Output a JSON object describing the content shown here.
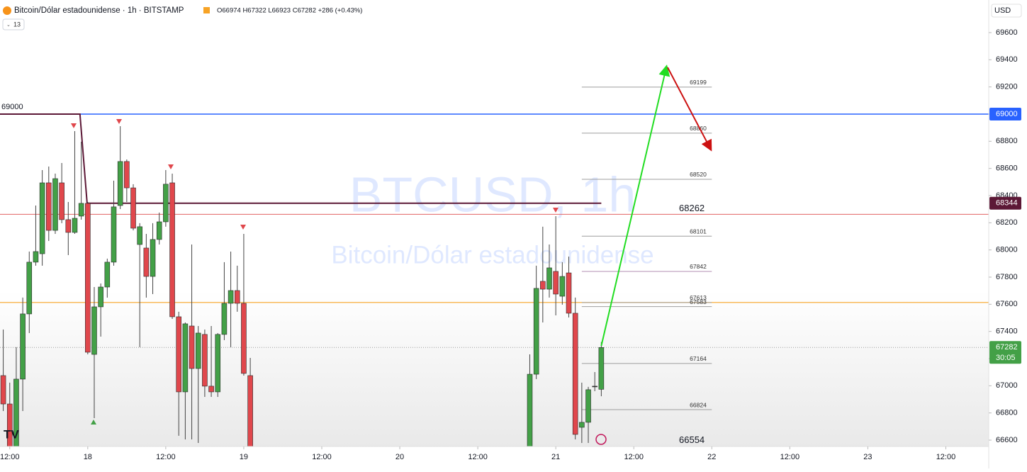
{
  "chart_data": {
    "type": "candlestick",
    "title": "Bitcoin/Dólar estadounidense · 1h · BITSTAMP",
    "ohlc_label": "O66974 H67322 L66923 C67282 +286 (+0.43%)",
    "indicator_count": 13,
    "currency": "USD",
    "watermark": {
      "symbol": "BTCUSD, 1h",
      "name": "Bitcoin/Dólar estadounidense"
    },
    "countdown": "30:05",
    "up_color": "#43a047",
    "down_color": "#e0474c",
    "xlim": [
      10.5,
      162.6
    ],
    "ylim": [
      66553,
      69840
    ],
    "xticks": [
      {
        "value": 12,
        "label": "12:00"
      },
      {
        "value": 24,
        "label": "18"
      },
      {
        "value": 36,
        "label": "12:00"
      },
      {
        "value": 48,
        "label": "19"
      },
      {
        "value": 60,
        "label": "12:00"
      },
      {
        "value": 72,
        "label": "20"
      },
      {
        "value": 84,
        "label": "12:00"
      },
      {
        "value": 96,
        "label": "21"
      },
      {
        "value": 108,
        "label": "12:00"
      },
      {
        "value": 120,
        "label": "22"
      },
      {
        "value": 132,
        "label": "12:00"
      },
      {
        "value": 144,
        "label": "23"
      },
      {
        "value": 156,
        "label": "12:00"
      }
    ],
    "yticks": [
      66600,
      66800,
      67000,
      67200,
      67400,
      67600,
      67800,
      68000,
      68200,
      68400,
      68600,
      68800,
      69000,
      69200,
      69400,
      69600
    ],
    "candles": {
      "x": [
        11,
        12,
        13,
        14,
        15,
        16,
        17,
        18,
        19,
        20,
        21,
        22,
        23,
        24,
        25,
        26,
        27,
        28,
        29,
        30,
        31,
        32,
        33,
        34,
        35,
        36,
        37,
        38,
        39,
        40,
        41,
        42,
        43,
        44,
        45,
        46,
        47,
        48,
        49,
        92,
        93,
        94,
        95,
        96,
        97,
        98,
        99,
        100,
        101,
        102,
        103
      ],
      "open": [
        67075,
        66866,
        66501,
        67049,
        67529,
        67910,
        67972,
        68494,
        68144,
        68494,
        68223,
        68129,
        68249,
        68343,
        67231,
        67581,
        67727,
        67910,
        68327,
        68651,
        68457,
        68040,
        68014,
        67805,
        68077,
        68207,
        68494,
        67508,
        66955,
        67440,
        67127,
        67378,
        66997,
        66955,
        67378,
        67607,
        67701,
        67607,
        67075,
        66501,
        67085,
        67769,
        67711,
        67842,
        67659,
        67831,
        67534,
        66694,
        66731,
        66997,
        66974
      ],
      "high": [
        67414,
        67023,
        67284,
        67649,
        67988,
        68327,
        68588,
        68614,
        68562,
        68640,
        68353,
        68875,
        68797,
        68353,
        67727,
        67753,
        67936,
        68510,
        68911,
        68666,
        68484,
        68197,
        68118,
        68197,
        68275,
        68588,
        68562,
        67545,
        67466,
        68040,
        67440,
        67414,
        67440,
        67388,
        67910,
        67988,
        67884,
        68118,
        67205,
        67231,
        67884,
        68171,
        68040,
        68249,
        67910,
        67951,
        67649,
        67023,
        66992,
        67101,
        67322
      ],
      "low": [
        66814,
        66449,
        66449,
        66814,
        67388,
        67884,
        67884,
        68066,
        68118,
        68197,
        67962,
        68118,
        68223,
        67231,
        66762,
        67362,
        67649,
        67884,
        68301,
        68353,
        68144,
        67284,
        67649,
        67675,
        68040,
        68171,
        67492,
        66632,
        66605,
        66605,
        66579,
        66918,
        66918,
        66918,
        67336,
        67284,
        67545,
        67075,
        66449,
        66449,
        67049,
        67466,
        67649,
        67518,
        67597,
        67503,
        66605,
        66579,
        66579,
        66960,
        66923
      ],
      "close": [
        66866,
        66501,
        67049,
        67529,
        67910,
        67988,
        68494,
        68144,
        68525,
        68223,
        68129,
        68233,
        68343,
        67247,
        67581,
        67727,
        67910,
        68317,
        68651,
        68457,
        68160,
        68171,
        67805,
        68077,
        68207,
        68484,
        67508,
        66955,
        67456,
        67127,
        67388,
        66997,
        66955,
        67378,
        67607,
        67701,
        67607,
        67091,
        66501,
        67085,
        67717,
        67711,
        67868,
        67675,
        67805,
        67534,
        66642,
        66731,
        66971,
        66997,
        67282
      ]
    },
    "levels": [
      {
        "value": 69000,
        "color": "#2962ff"
      },
      {
        "value": 68262,
        "color": "#e57373"
      },
      {
        "value": 67613,
        "color": "#f7a325"
      }
    ],
    "fib_levels": [
      69199,
      68860,
      68520,
      68101,
      67842,
      67613,
      67583,
      67164,
      66824
    ],
    "fib_range": [
      100,
      120
    ],
    "trendline": {
      "color": "#5c1836",
      "x": [
        10.5,
        22.8,
        23.9,
        103
      ],
      "y": [
        69000,
        69000,
        68344,
        68344
      ]
    },
    "arrows": [
      {
        "color": "#22dd22",
        "x": [
          103,
          113
        ],
        "y": [
          67294,
          69344
        ]
      },
      {
        "color": "#cc1111",
        "x": [
          113.2,
          119.8
        ],
        "y": [
          69344,
          68744
        ]
      }
    ],
    "low_label": 66554
  }
}
